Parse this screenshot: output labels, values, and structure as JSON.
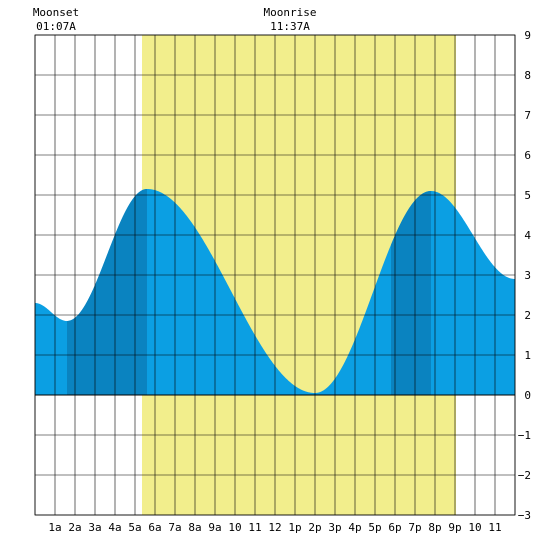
{
  "chart_data": {
    "type": "area",
    "title": "",
    "xlabel": "",
    "ylabel": "",
    "xlim": [
      0,
      24
    ],
    "ylim": [
      -3,
      9
    ],
    "grid": true,
    "x_ticks": [
      {
        "x": 1,
        "label": "1a"
      },
      {
        "x": 2,
        "label": "2a"
      },
      {
        "x": 3,
        "label": "3a"
      },
      {
        "x": 4,
        "label": "4a"
      },
      {
        "x": 5,
        "label": "5a"
      },
      {
        "x": 6,
        "label": "6a"
      },
      {
        "x": 7,
        "label": "7a"
      },
      {
        "x": 8,
        "label": "8a"
      },
      {
        "x": 9,
        "label": "9a"
      },
      {
        "x": 10,
        "label": "10"
      },
      {
        "x": 11,
        "label": "11"
      },
      {
        "x": 12,
        "label": "12"
      },
      {
        "x": 13,
        "label": "1p"
      },
      {
        "x": 14,
        "label": "2p"
      },
      {
        "x": 15,
        "label": "3p"
      },
      {
        "x": 16,
        "label": "4p"
      },
      {
        "x": 17,
        "label": "5p"
      },
      {
        "x": 18,
        "label": "6p"
      },
      {
        "x": 19,
        "label": "7p"
      },
      {
        "x": 20,
        "label": "8p"
      },
      {
        "x": 21,
        "label": "9p"
      },
      {
        "x": 22,
        "label": "10"
      },
      {
        "x": 23,
        "label": "11"
      }
    ],
    "y_ticks": [
      -3,
      -2,
      -1,
      0,
      1,
      2,
      3,
      4,
      5,
      6,
      7,
      8,
      9
    ],
    "tide_extremes": [
      {
        "x": 0.0,
        "y": 2.3
      },
      {
        "x": 1.6,
        "y": 1.85
      },
      {
        "x": 5.6,
        "y": 5.15
      },
      {
        "x": 14.0,
        "y": 0.05
      },
      {
        "x": 19.8,
        "y": 5.1
      },
      {
        "x": 24.0,
        "y": 2.9
      }
    ],
    "daylight_band": {
      "start": 5.35,
      "end": 21.05,
      "color": "#f2ee8c"
    },
    "dark_bands": [
      {
        "start": 1.6,
        "end": 5.6
      },
      {
        "start": 17.8,
        "end": 19.8
      }
    ],
    "colors": {
      "tide": "#0b9fe3",
      "tide_dark": "#0a83c0",
      "grid": "#000000"
    },
    "annotations": {
      "moonset": {
        "title": "Moonset",
        "time": "01:07A",
        "x": 1.1
      },
      "moonrise": {
        "title": "Moonrise",
        "time": "11:37A",
        "x": 11.6
      }
    }
  }
}
